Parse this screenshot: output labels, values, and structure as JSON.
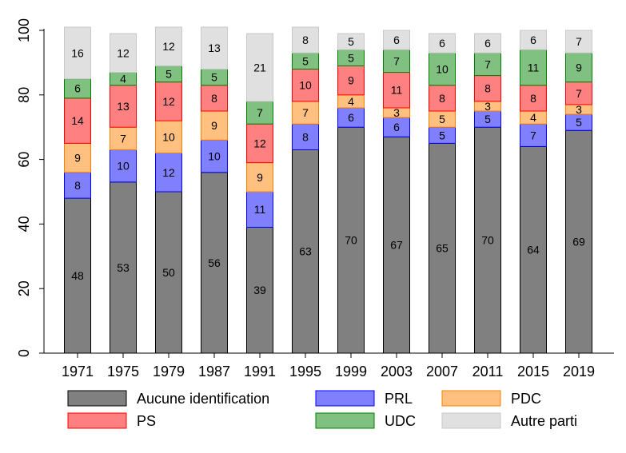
{
  "chart_data": {
    "type": "bar",
    "stacked": true,
    "categories": [
      "1971",
      "1975",
      "1979",
      "1987",
      "1991",
      "1995",
      "1999",
      "2003",
      "2007",
      "2011",
      "2015",
      "2019"
    ],
    "series": [
      {
        "name": "Aucune identification",
        "color": "#808080",
        "border": "#000000",
        "values": [
          48,
          53,
          50,
          56,
          39,
          63,
          70,
          67,
          65,
          70,
          64,
          69
        ]
      },
      {
        "name": "PRL",
        "color": "#8080ff",
        "border": "#0000ff",
        "values": [
          8,
          10,
          12,
          10,
          11,
          8,
          6,
          6,
          5,
          5,
          7,
          5
        ]
      },
      {
        "name": "PDC",
        "color": "#ffc080",
        "border": "#ff8000",
        "values": [
          9,
          7,
          10,
          9,
          9,
          7,
          4,
          3,
          5,
          3,
          4,
          3
        ]
      },
      {
        "name": "PS",
        "color": "#ff8080",
        "border": "#ff0000",
        "values": [
          14,
          13,
          12,
          8,
          12,
          10,
          9,
          11,
          8,
          8,
          8,
          7
        ]
      },
      {
        "name": "UDC",
        "color": "#80c080",
        "border": "#008000",
        "values": [
          6,
          4,
          5,
          5,
          7,
          5,
          5,
          7,
          10,
          7,
          11,
          9
        ]
      },
      {
        "name": "Autre parti",
        "color": "#e0e0e0",
        "border": "#c8c8c8",
        "values": [
          16,
          12,
          12,
          13,
          21,
          8,
          5,
          6,
          6,
          6,
          6,
          7
        ]
      }
    ],
    "yticks": [
      "0",
      "20",
      "40",
      "60",
      "80",
      "100"
    ],
    "ylim": [
      0,
      100
    ],
    "legend_position": "bottom"
  }
}
